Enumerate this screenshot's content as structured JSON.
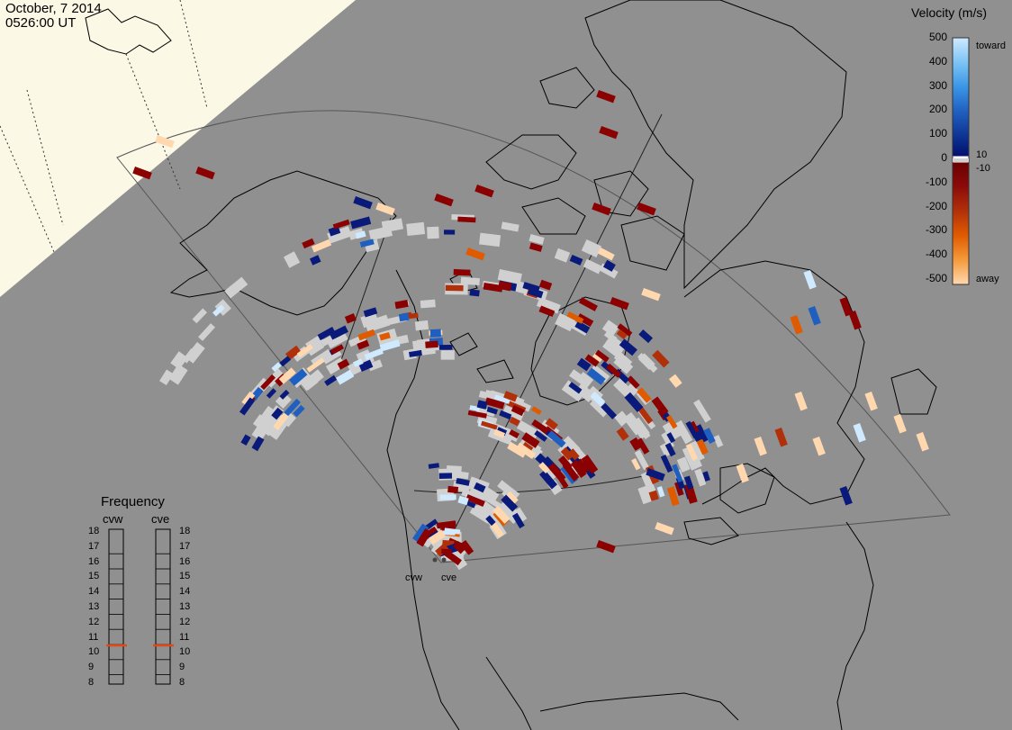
{
  "header": {
    "date": "October, 7 2014",
    "time": "0526:00 UT"
  },
  "colorbar": {
    "title": "Velocity (m/s)",
    "ticks": [
      "500",
      "400",
      "300",
      "200",
      "100",
      "0",
      "-100",
      "-200",
      "-300",
      "-400",
      "-500"
    ],
    "label_toward": "toward",
    "label_away": "away",
    "label_pos_small": "10",
    "label_neg_small": "-10",
    "scale": [
      {
        "v": 500,
        "color": "#cfe9ff"
      },
      {
        "v": 400,
        "color": "#7cc4f5"
      },
      {
        "v": 300,
        "color": "#3a95e6"
      },
      {
        "v": 200,
        "color": "#1f5fc0"
      },
      {
        "v": 100,
        "color": "#0a2a8a"
      },
      {
        "v": 10,
        "color": "#050f6e"
      },
      {
        "v": -10,
        "color": "#7a0000"
      },
      {
        "v": -100,
        "color": "#8b0a0a"
      },
      {
        "v": -200,
        "color": "#b0300a"
      },
      {
        "v": -300,
        "color": "#e05a00"
      },
      {
        "v": -400,
        "color": "#f59a3a"
      },
      {
        "v": -500,
        "color": "#ffd8b0"
      }
    ],
    "ground_scatter_color": "#d0d0d0"
  },
  "frequency": {
    "title": "Frequency",
    "radars": [
      "cvw",
      "cve"
    ],
    "ticks": [
      "18",
      "17",
      "16",
      "15",
      "14",
      "13",
      "12",
      "11",
      "10",
      "9",
      "8"
    ],
    "selected_mhz": [
      10.5,
      10.5
    ],
    "marker_color": "#e04a1a"
  },
  "radars": {
    "west": "cvw",
    "east": "cve"
  },
  "colors": {
    "background": "#909090",
    "land_daylight": "#fbf8e6",
    "coast": "#000000"
  }
}
